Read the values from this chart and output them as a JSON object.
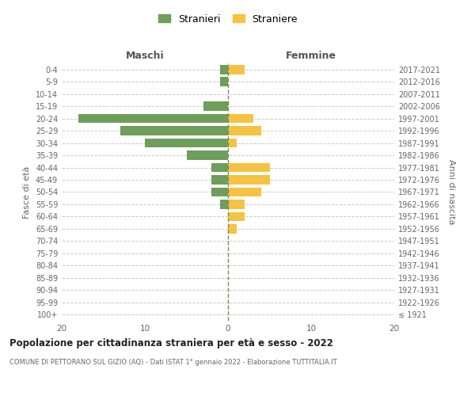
{
  "age_groups": [
    "100+",
    "95-99",
    "90-94",
    "85-89",
    "80-84",
    "75-79",
    "70-74",
    "65-69",
    "60-64",
    "55-59",
    "50-54",
    "45-49",
    "40-44",
    "35-39",
    "30-34",
    "25-29",
    "20-24",
    "15-19",
    "10-14",
    "5-9",
    "0-4"
  ],
  "birth_years": [
    "≤ 1921",
    "1922-1926",
    "1927-1931",
    "1932-1936",
    "1937-1941",
    "1942-1946",
    "1947-1951",
    "1952-1956",
    "1957-1961",
    "1962-1966",
    "1967-1971",
    "1972-1976",
    "1977-1981",
    "1982-1986",
    "1987-1991",
    "1992-1996",
    "1997-2001",
    "2002-2006",
    "2007-2011",
    "2012-2016",
    "2017-2021"
  ],
  "maschi": [
    0,
    0,
    0,
    0,
    0,
    0,
    0,
    0,
    0,
    1,
    2,
    2,
    2,
    5,
    10,
    13,
    18,
    3,
    0,
    1,
    1
  ],
  "femmine": [
    0,
    0,
    0,
    0,
    0,
    0,
    0,
    1,
    2,
    2,
    4,
    5,
    5,
    0,
    1,
    4,
    3,
    0,
    0,
    0,
    2
  ],
  "color_maschi": "#6d9e5a",
  "color_femmine": "#f5c242",
  "title": "Popolazione per cittadinanza straniera per età e sesso - 2022",
  "subtitle": "COMUNE DI PETTORANO SUL GIZIO (AQ) - Dati ISTAT 1° gennaio 2022 - Elaborazione TUTTITALIA.IT",
  "xlabel_left": "Maschi",
  "xlabel_right": "Femmine",
  "ylabel_left": "Fasce di età",
  "ylabel_right": "Anni di nascita",
  "legend_maschi": "Stranieri",
  "legend_femmine": "Straniere",
  "xlim": 20,
  "background_color": "#ffffff",
  "grid_color": "#cccccc"
}
